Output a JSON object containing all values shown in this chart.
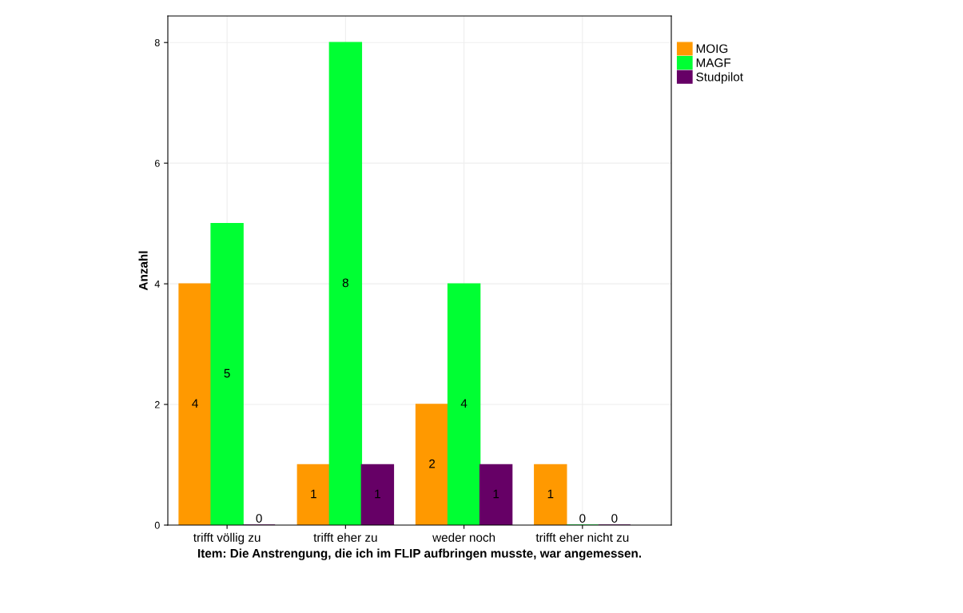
{
  "chart_data": {
    "type": "bar",
    "xlabel": "Item: Die Anstrengung, die ich im FLIP aufbringen musste, war angemessen.",
    "ylabel": "Anzahl",
    "categories": [
      "trifft völlig zu",
      "trifft eher zu",
      "weder noch",
      "trifft eher nicht zu"
    ],
    "series": [
      {
        "name": "MOIG",
        "color": "#ff9900",
        "values": [
          4,
          1,
          2,
          1
        ]
      },
      {
        "name": "MAGF",
        "color": "#00ff33",
        "values": [
          5,
          8,
          4,
          0
        ]
      },
      {
        "name": "Studpilot",
        "color": "#660066",
        "values": [
          0,
          1,
          1,
          0
        ]
      }
    ],
    "ylim": [
      0,
      8.44
    ],
    "yticks": [
      0,
      2,
      4,
      6,
      8
    ],
    "grid": true,
    "legend": "top right",
    "data_labels": true
  }
}
